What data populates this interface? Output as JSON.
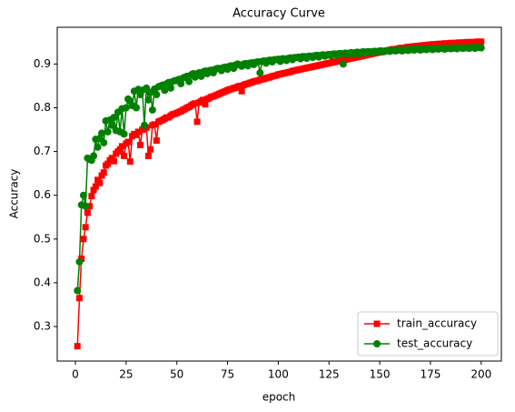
{
  "chart_data": {
    "type": "line",
    "title": "Accuracy Curve",
    "x_label": "epoch",
    "y_label": "Accuracy",
    "x": [
      1,
      2,
      3,
      4,
      5,
      6,
      7,
      8,
      9,
      10,
      11,
      12,
      13,
      14,
      15,
      16,
      17,
      18,
      19,
      20,
      21,
      22,
      23,
      24,
      25,
      26,
      27,
      28,
      29,
      30,
      31,
      32,
      33,
      34,
      35,
      36,
      37,
      38,
      39,
      40,
      41,
      42,
      43,
      44,
      45,
      46,
      47,
      48,
      49,
      50,
      51,
      52,
      53,
      54,
      55,
      56,
      57,
      58,
      59,
      60,
      61,
      62,
      63,
      64,
      65,
      66,
      67,
      68,
      69,
      70,
      71,
      72,
      73,
      74,
      75,
      76,
      77,
      78,
      79,
      80,
      81,
      82,
      83,
      84,
      85,
      86,
      87,
      88,
      89,
      90,
      91,
      92,
      93,
      94,
      95,
      96,
      97,
      98,
      99,
      100,
      101,
      102,
      103,
      104,
      105,
      106,
      107,
      108,
      109,
      110,
      111,
      112,
      113,
      114,
      115,
      116,
      117,
      118,
      119,
      120,
      121,
      122,
      123,
      124,
      125,
      126,
      127,
      128,
      129,
      130,
      131,
      132,
      133,
      134,
      135,
      136,
      137,
      138,
      139,
      140,
      141,
      142,
      143,
      144,
      145,
      146,
      147,
      148,
      149,
      150,
      151,
      152,
      153,
      154,
      155,
      156,
      157,
      158,
      159,
      160,
      161,
      162,
      163,
      164,
      165,
      166,
      167,
      168,
      169,
      170,
      171,
      172,
      173,
      174,
      175,
      176,
      177,
      178,
      179,
      180,
      181,
      182,
      183,
      184,
      185,
      186,
      187,
      188,
      189,
      190,
      191,
      192,
      193,
      194,
      195,
      196,
      197,
      198,
      199,
      200
    ],
    "series": [
      {
        "name": "train_accuracy",
        "color": "#ff0000",
        "marker": "square",
        "values": [
          0.255,
          0.365,
          0.455,
          0.5,
          0.527,
          0.56,
          0.575,
          0.598,
          0.612,
          0.62,
          0.635,
          0.628,
          0.645,
          0.652,
          0.668,
          0.672,
          0.68,
          0.685,
          0.678,
          0.695,
          0.7,
          0.705,
          0.712,
          0.69,
          0.718,
          0.722,
          0.677,
          0.735,
          0.74,
          0.738,
          0.745,
          0.715,
          0.75,
          0.752,
          0.755,
          0.69,
          0.705,
          0.76,
          0.762,
          0.725,
          0.768,
          0.77,
          0.772,
          0.775,
          0.778,
          0.778,
          0.782,
          0.785,
          0.786,
          0.788,
          0.79,
          0.792,
          0.795,
          0.797,
          0.8,
          0.802,
          0.805,
          0.808,
          0.81,
          0.768,
          0.812,
          0.815,
          0.818,
          0.808,
          0.82,
          0.822,
          0.825,
          0.826,
          0.828,
          0.83,
          0.832,
          0.834,
          0.836,
          0.838,
          0.84,
          0.842,
          0.843,
          0.845,
          0.846,
          0.848,
          0.85,
          0.838,
          0.852,
          0.854,
          0.855,
          0.857,
          0.858,
          0.86,
          0.861,
          0.862,
          0.864,
          0.865,
          0.866,
          0.868,
          0.869,
          0.87,
          0.872,
          0.873,
          0.874,
          0.876,
          0.877,
          0.878,
          0.879,
          0.88,
          0.881,
          0.882,
          0.884,
          0.885,
          0.886,
          0.887,
          0.888,
          0.889,
          0.89,
          0.891,
          0.892,
          0.893,
          0.894,
          0.895,
          0.896,
          0.897,
          0.898,
          0.899,
          0.9,
          0.901,
          0.902,
          0.903,
          0.904,
          0.905,
          0.906,
          0.907,
          0.908,
          0.909,
          0.91,
          0.911,
          0.912,
          0.913,
          0.914,
          0.915,
          0.916,
          0.917,
          0.918,
          0.919,
          0.92,
          0.921,
          0.922,
          0.923,
          0.924,
          0.925,
          0.926,
          0.927,
          0.928,
          0.929,
          0.93,
          0.931,
          0.932,
          0.933,
          0.934,
          0.934,
          0.935,
          0.936,
          0.937,
          0.937,
          0.938,
          0.939,
          0.939,
          0.94,
          0.94,
          0.941,
          0.941,
          0.942,
          0.942,
          0.943,
          0.943,
          0.944,
          0.944,
          0.945,
          0.945,
          0.945,
          0.946,
          0.946,
          0.946,
          0.947,
          0.947,
          0.947,
          0.948,
          0.948,
          0.948,
          0.948,
          0.949,
          0.949,
          0.949,
          0.949,
          0.95,
          0.95,
          0.95,
          0.95,
          0.95,
          0.951,
          0.951,
          0.951
        ]
      },
      {
        "name": "test_accuracy",
        "color": "#008000",
        "marker": "circle",
        "values": [
          0.382,
          0.448,
          0.578,
          0.6,
          0.575,
          0.685,
          0.682,
          0.68,
          0.69,
          0.728,
          0.71,
          0.73,
          0.742,
          0.72,
          0.77,
          0.745,
          0.772,
          0.76,
          0.778,
          0.748,
          0.79,
          0.745,
          0.798,
          0.74,
          0.8,
          0.82,
          0.815,
          0.805,
          0.838,
          0.8,
          0.842,
          0.83,
          0.84,
          0.76,
          0.845,
          0.818,
          0.835,
          0.795,
          0.843,
          0.83,
          0.848,
          0.85,
          0.852,
          0.84,
          0.855,
          0.858,
          0.845,
          0.86,
          0.862,
          0.862,
          0.865,
          0.855,
          0.868,
          0.87,
          0.872,
          0.86,
          0.875,
          0.878,
          0.87,
          0.878,
          0.88,
          0.872,
          0.882,
          0.884,
          0.878,
          0.885,
          0.886,
          0.88,
          0.888,
          0.89,
          0.89,
          0.885,
          0.892,
          0.893,
          0.888,
          0.895,
          0.896,
          0.89,
          0.898,
          0.9,
          0.898,
          0.895,
          0.9,
          0.901,
          0.896,
          0.902,
          0.903,
          0.899,
          0.904,
          0.905,
          0.88,
          0.906,
          0.907,
          0.902,
          0.908,
          0.909,
          0.905,
          0.91,
          0.91,
          0.911,
          0.906,
          0.912,
          0.912,
          0.908,
          0.913,
          0.914,
          0.91,
          0.915,
          0.915,
          0.916,
          0.912,
          0.917,
          0.917,
          0.913,
          0.918,
          0.918,
          0.915,
          0.919,
          0.92,
          0.916,
          0.92,
          0.921,
          0.918,
          0.921,
          0.922,
          0.919,
          0.923,
          0.923,
          0.92,
          0.924,
          0.924,
          0.9,
          0.925,
          0.922,
          0.925,
          0.926,
          0.923,
          0.926,
          0.927,
          0.924,
          0.927,
          0.928,
          0.925,
          0.928,
          0.928,
          0.926,
          0.929,
          0.929,
          0.927,
          0.93,
          0.93,
          0.928,
          0.93,
          0.931,
          0.929,
          0.931,
          0.931,
          0.93,
          0.932,
          0.932,
          0.93,
          0.932,
          0.933,
          0.931,
          0.933,
          0.933,
          0.932,
          0.934,
          0.934,
          0.932,
          0.934,
          0.934,
          0.933,
          0.935,
          0.935,
          0.933,
          0.935,
          0.935,
          0.934,
          0.936,
          0.936,
          0.934,
          0.936,
          0.936,
          0.935,
          0.936,
          0.937,
          0.935,
          0.937,
          0.937,
          0.936,
          0.937,
          0.937,
          0.936,
          0.937,
          0.938,
          0.936,
          0.938,
          0.938,
          0.937
        ]
      }
    ],
    "xlim": [
      -8.95,
      209.95
    ],
    "xticks": [
      0,
      25,
      50,
      75,
      100,
      125,
      150,
      175,
      200
    ],
    "ylim": [
      0.221,
      0.984
    ],
    "yticks": [
      0.3,
      0.4,
      0.5,
      0.6,
      0.7,
      0.8,
      0.9
    ],
    "grid": false,
    "legend": "lower right"
  }
}
